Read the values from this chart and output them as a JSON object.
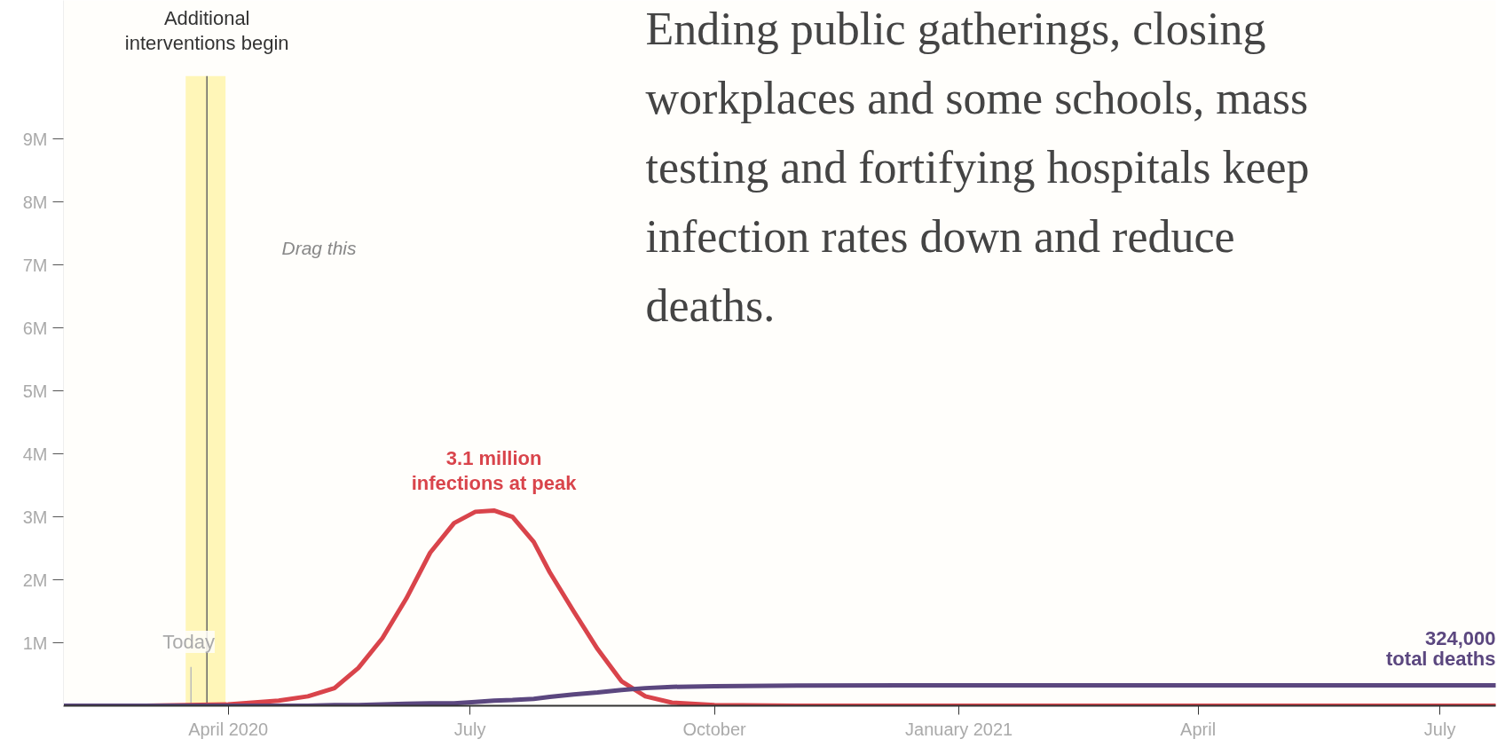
{
  "chart_data": {
    "type": "line",
    "x": [
      "2020-01-30",
      "2020-03-01",
      "2020-04-01",
      "2020-04-20",
      "2020-05-01",
      "2020-05-11",
      "2020-05-20",
      "2020-05-29",
      "2020-06-07",
      "2020-06-16",
      "2020-06-25",
      "2020-07-03",
      "2020-07-10",
      "2020-07-17",
      "2020-07-25",
      "2020-07-31",
      "2020-08-09",
      "2020-08-18",
      "2020-08-27",
      "2020-09-05",
      "2020-09-15",
      "2020-10-01",
      "2020-11-01",
      "2021-01-01",
      "2021-07-22"
    ],
    "series": [
      {
        "color": "#d9444b",
        "values": [
          0,
          0,
          20000,
          80000,
          150000,
          280000,
          600000,
          1070000,
          1700000,
          2430000,
          2900000,
          3080000,
          3100000,
          3000000,
          2600000,
          2120000,
          1500000,
          900000,
          390000,
          150000,
          50000,
          10000,
          0,
          0,
          0
        ]
      },
      {
        "color": "#5b477f",
        "values": [
          0,
          0,
          0,
          0,
          0,
          10000,
          10000,
          20000,
          30000,
          40000,
          40000,
          60000,
          80000,
          90000,
          110000,
          140000,
          180000,
          210000,
          250000,
          280000,
          300000,
          310000,
          320000,
          324000,
          324000
        ]
      }
    ],
    "xlim": [
      "2020-01-30",
      "2021-07-22"
    ],
    "xticks": [
      {
        "value": "2020-04-01",
        "label": "April 2020"
      },
      {
        "value": "2020-07-01",
        "label": "July"
      },
      {
        "value": "2020-10-01",
        "label": "October"
      },
      {
        "value": "2021-01-01",
        "label": "January 2021"
      },
      {
        "value": "2021-04-01",
        "label": "April"
      },
      {
        "value": "2021-07-01",
        "label": "July"
      }
    ],
    "ylim": [
      0,
      11200000
    ],
    "yticks": [
      {
        "value": 1000000,
        "label": "1M"
      },
      {
        "value": 2000000,
        "label": "2M"
      },
      {
        "value": 3000000,
        "label": "3M"
      },
      {
        "value": 4000000,
        "label": "4M"
      },
      {
        "value": 5000000,
        "label": "5M"
      },
      {
        "value": 6000000,
        "label": "6M"
      },
      {
        "value": 7000000,
        "label": "7M"
      },
      {
        "value": 8000000,
        "label": "8M"
      },
      {
        "value": 9000000,
        "label": "9M"
      }
    ],
    "bands": [
      {
        "axis": "x",
        "from": "2020-03-16",
        "to": "2020-03-31",
        "color": "#fff6b8"
      }
    ],
    "ref_lines": [
      {
        "axis": "x",
        "value": "2020-03-24",
        "label": "Additional interventions begin",
        "color": "#666666"
      },
      {
        "axis": "x",
        "value": "2020-03-18",
        "label": "Today",
        "color": "#bbbbbb"
      }
    ],
    "annotations": [
      {
        "text": "3.1 million\ninfections at peak",
        "x": "2020-07-10",
        "y": 3100000
      },
      {
        "text": "324,000\ntotal deaths",
        "x": "2021-07-22",
        "y": 324000
      },
      "Drag this",
      "Ending public gatherings, closing workplaces and some schools, mass testing and fortifying hospitals keep infection rates down and reduce deaths."
    ],
    "grid": false,
    "line_style": "solid",
    "marker": "none"
  }
}
